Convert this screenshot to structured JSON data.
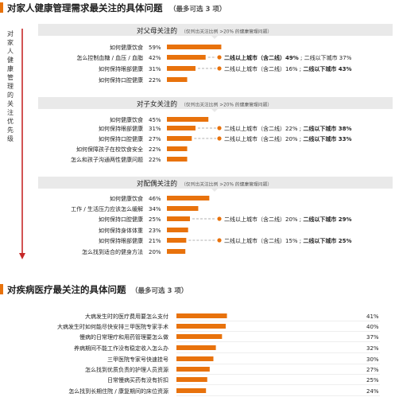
{
  "top_section": {
    "title": "对家人健康管理需求最关注的具体问题",
    "note": "（最多可选 3 项）",
    "side_label": "对家人健康管理的关注优先级"
  },
  "bottom_section": {
    "title": "对疾病医疗最关注的具体问题",
    "note": "（最多可选 3 项）"
  },
  "colors": {
    "accent": "#E8720C",
    "header_bg": "#E9E9E9",
    "arrow": "#C62828",
    "dash": "#999999",
    "text": "#222222"
  },
  "chart_data": [
    {
      "type": "bar",
      "title": "对父母关注的",
      "subtitle": "（仅列出关注比例 >20% 的健康管理问题）",
      "categories": [
        "如何健康饮食",
        "怎么控制血糖 / 血压 / 血脂",
        "如何保持眼部健康",
        "如何保持口腔健康"
      ],
      "values": [
        59,
        42,
        31,
        22
      ],
      "value_labels": [
        "59%",
        "42%",
        "31%",
        "22%"
      ],
      "callouts": [
        {
          "category_index": 1,
          "left": "二线以上城市（含二线）",
          "left_value": "49%",
          "right": "二线以下城市",
          "right_value": "37%",
          "bold": "left"
        },
        {
          "category_index": 2,
          "left": "二线以上城市（含二线）",
          "left_value": "16%",
          "right": "二线以下城市",
          "right_value": "43%",
          "bold": "right"
        }
      ]
    },
    {
      "type": "bar",
      "title": "对子女关注的",
      "subtitle": "（仅列出关注比例 >20% 的健康管理问题）",
      "categories": [
        "如何健康饮食",
        "如何保持眼部健康",
        "如何保持口腔健康",
        "如何保障孩子在校饮食安全",
        "怎么和孩子沟通两性健康问题"
      ],
      "values": [
        45,
        31,
        27,
        22,
        22
      ],
      "value_labels": [
        "45%",
        "31%",
        "27%",
        "22%",
        "22%"
      ],
      "callouts": [
        {
          "category_index": 1,
          "left": "二线以上城市（含二线）",
          "left_value": "22%",
          "right": "二线以下城市",
          "right_value": "38%",
          "bold": "right"
        },
        {
          "category_index": 2,
          "left": "二线以上城市（含二线）",
          "left_value": "20%",
          "right": "二线以下城市",
          "right_value": "33%",
          "bold": "right"
        }
      ]
    },
    {
      "type": "bar",
      "title": "对配偶关注的",
      "subtitle": "（仅列出关注比例 >20% 的健康管理问题）",
      "categories": [
        "如何健康饮食",
        "工作 / 生活压力应该怎么缓解",
        "如何保持口腔健康",
        "如何保持身体体重",
        "如何保持眼部健康",
        "怎么找到适合的健身方法"
      ],
      "values": [
        46,
        34,
        25,
        23,
        21,
        20
      ],
      "value_labels": [
        "46%",
        "34%",
        "25%",
        "23%",
        "21%",
        "20%"
      ],
      "callouts": [
        {
          "category_index": 2,
          "left": "二线以上城市（含二线）",
          "left_value": "20%",
          "right": "二线以下城市",
          "right_value": "29%",
          "bold": "right"
        },
        {
          "category_index": 4,
          "left": "二线以上城市（含二线）",
          "left_value": "15%",
          "right": "二线以下城市",
          "right_value": "25%",
          "bold": "right"
        }
      ]
    },
    {
      "type": "bar",
      "categories": [
        "大病发生时的医疗费用要怎么支付",
        "大病发生时如何能尽快安排三甲医院专家手术",
        "慢病的日常理疗和用药管理要怎么做",
        "养病期间不能工作没有稳定收入怎么办",
        "三甲医院专家号快速挂号",
        "怎么找到优质负责的护理人员资源",
        "日常慢病买药有没有折扣",
        "怎么找到长期住院 / 康复期间的床位资源"
      ],
      "values": [
        41,
        40,
        37,
        32,
        30,
        27,
        25,
        24
      ],
      "value_labels": [
        "41%",
        "40%",
        "37%",
        "32%",
        "30%",
        "27%",
        "25%",
        "24%"
      ]
    }
  ]
}
